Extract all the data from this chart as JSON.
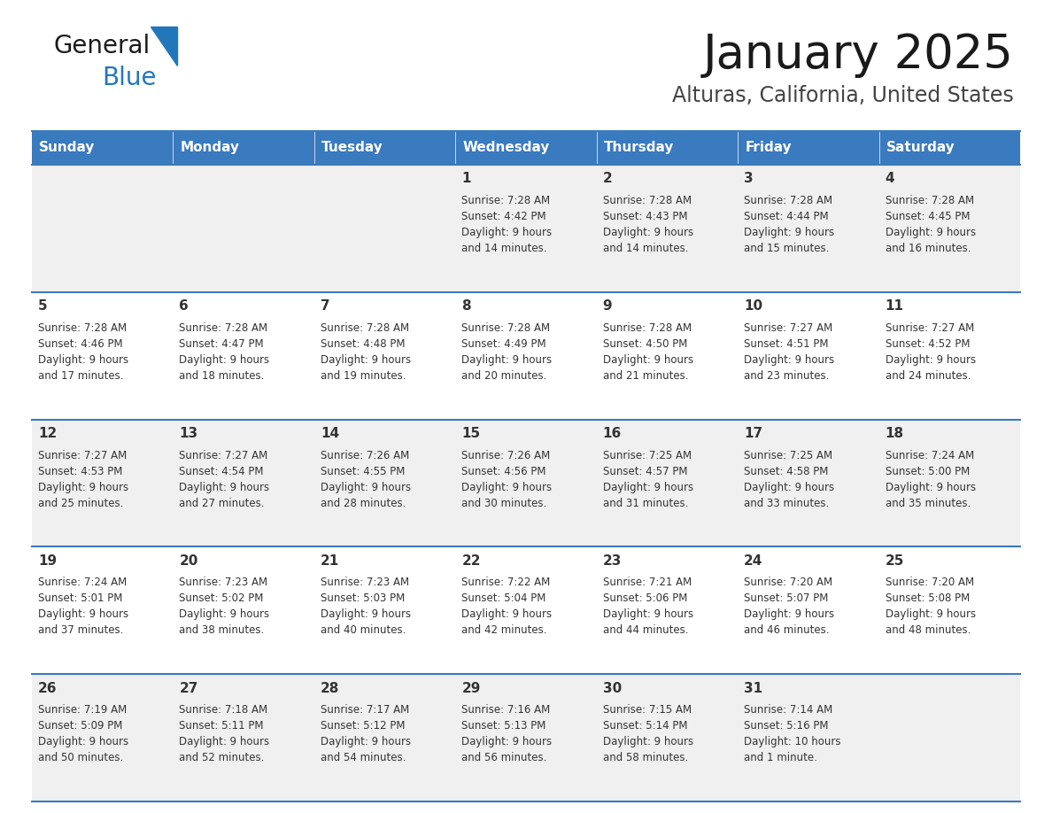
{
  "title": "January 2025",
  "subtitle": "Alturas, California, United States",
  "days_of_week": [
    "Sunday",
    "Monday",
    "Tuesday",
    "Wednesday",
    "Thursday",
    "Friday",
    "Saturday"
  ],
  "header_bg": "#3a7abf",
  "header_text": "#ffffff",
  "row_bg_odd": "#f0f0f0",
  "row_bg_even": "#ffffff",
  "cell_border": "#3a7abf",
  "day_text_color": "#333333",
  "info_text_color": "#333333",
  "logo_general_color": "#1a1a1a",
  "logo_blue_color": "#2277bb",
  "calendar_data": [
    [
      {
        "day": "",
        "info": ""
      },
      {
        "day": "",
        "info": ""
      },
      {
        "day": "",
        "info": ""
      },
      {
        "day": "1",
        "info": "Sunrise: 7:28 AM\nSunset: 4:42 PM\nDaylight: 9 hours\nand 14 minutes."
      },
      {
        "day": "2",
        "info": "Sunrise: 7:28 AM\nSunset: 4:43 PM\nDaylight: 9 hours\nand 14 minutes."
      },
      {
        "day": "3",
        "info": "Sunrise: 7:28 AM\nSunset: 4:44 PM\nDaylight: 9 hours\nand 15 minutes."
      },
      {
        "day": "4",
        "info": "Sunrise: 7:28 AM\nSunset: 4:45 PM\nDaylight: 9 hours\nand 16 minutes."
      }
    ],
    [
      {
        "day": "5",
        "info": "Sunrise: 7:28 AM\nSunset: 4:46 PM\nDaylight: 9 hours\nand 17 minutes."
      },
      {
        "day": "6",
        "info": "Sunrise: 7:28 AM\nSunset: 4:47 PM\nDaylight: 9 hours\nand 18 minutes."
      },
      {
        "day": "7",
        "info": "Sunrise: 7:28 AM\nSunset: 4:48 PM\nDaylight: 9 hours\nand 19 minutes."
      },
      {
        "day": "8",
        "info": "Sunrise: 7:28 AM\nSunset: 4:49 PM\nDaylight: 9 hours\nand 20 minutes."
      },
      {
        "day": "9",
        "info": "Sunrise: 7:28 AM\nSunset: 4:50 PM\nDaylight: 9 hours\nand 21 minutes."
      },
      {
        "day": "10",
        "info": "Sunrise: 7:27 AM\nSunset: 4:51 PM\nDaylight: 9 hours\nand 23 minutes."
      },
      {
        "day": "11",
        "info": "Sunrise: 7:27 AM\nSunset: 4:52 PM\nDaylight: 9 hours\nand 24 minutes."
      }
    ],
    [
      {
        "day": "12",
        "info": "Sunrise: 7:27 AM\nSunset: 4:53 PM\nDaylight: 9 hours\nand 25 minutes."
      },
      {
        "day": "13",
        "info": "Sunrise: 7:27 AM\nSunset: 4:54 PM\nDaylight: 9 hours\nand 27 minutes."
      },
      {
        "day": "14",
        "info": "Sunrise: 7:26 AM\nSunset: 4:55 PM\nDaylight: 9 hours\nand 28 minutes."
      },
      {
        "day": "15",
        "info": "Sunrise: 7:26 AM\nSunset: 4:56 PM\nDaylight: 9 hours\nand 30 minutes."
      },
      {
        "day": "16",
        "info": "Sunrise: 7:25 AM\nSunset: 4:57 PM\nDaylight: 9 hours\nand 31 minutes."
      },
      {
        "day": "17",
        "info": "Sunrise: 7:25 AM\nSunset: 4:58 PM\nDaylight: 9 hours\nand 33 minutes."
      },
      {
        "day": "18",
        "info": "Sunrise: 7:24 AM\nSunset: 5:00 PM\nDaylight: 9 hours\nand 35 minutes."
      }
    ],
    [
      {
        "day": "19",
        "info": "Sunrise: 7:24 AM\nSunset: 5:01 PM\nDaylight: 9 hours\nand 37 minutes."
      },
      {
        "day": "20",
        "info": "Sunrise: 7:23 AM\nSunset: 5:02 PM\nDaylight: 9 hours\nand 38 minutes."
      },
      {
        "day": "21",
        "info": "Sunrise: 7:23 AM\nSunset: 5:03 PM\nDaylight: 9 hours\nand 40 minutes."
      },
      {
        "day": "22",
        "info": "Sunrise: 7:22 AM\nSunset: 5:04 PM\nDaylight: 9 hours\nand 42 minutes."
      },
      {
        "day": "23",
        "info": "Sunrise: 7:21 AM\nSunset: 5:06 PM\nDaylight: 9 hours\nand 44 minutes."
      },
      {
        "day": "24",
        "info": "Sunrise: 7:20 AM\nSunset: 5:07 PM\nDaylight: 9 hours\nand 46 minutes."
      },
      {
        "day": "25",
        "info": "Sunrise: 7:20 AM\nSunset: 5:08 PM\nDaylight: 9 hours\nand 48 minutes."
      }
    ],
    [
      {
        "day": "26",
        "info": "Sunrise: 7:19 AM\nSunset: 5:09 PM\nDaylight: 9 hours\nand 50 minutes."
      },
      {
        "day": "27",
        "info": "Sunrise: 7:18 AM\nSunset: 5:11 PM\nDaylight: 9 hours\nand 52 minutes."
      },
      {
        "day": "28",
        "info": "Sunrise: 7:17 AM\nSunset: 5:12 PM\nDaylight: 9 hours\nand 54 minutes."
      },
      {
        "day": "29",
        "info": "Sunrise: 7:16 AM\nSunset: 5:13 PM\nDaylight: 9 hours\nand 56 minutes."
      },
      {
        "day": "30",
        "info": "Sunrise: 7:15 AM\nSunset: 5:14 PM\nDaylight: 9 hours\nand 58 minutes."
      },
      {
        "day": "31",
        "info": "Sunrise: 7:14 AM\nSunset: 5:16 PM\nDaylight: 10 hours\nand 1 minute."
      },
      {
        "day": "",
        "info": ""
      }
    ]
  ]
}
